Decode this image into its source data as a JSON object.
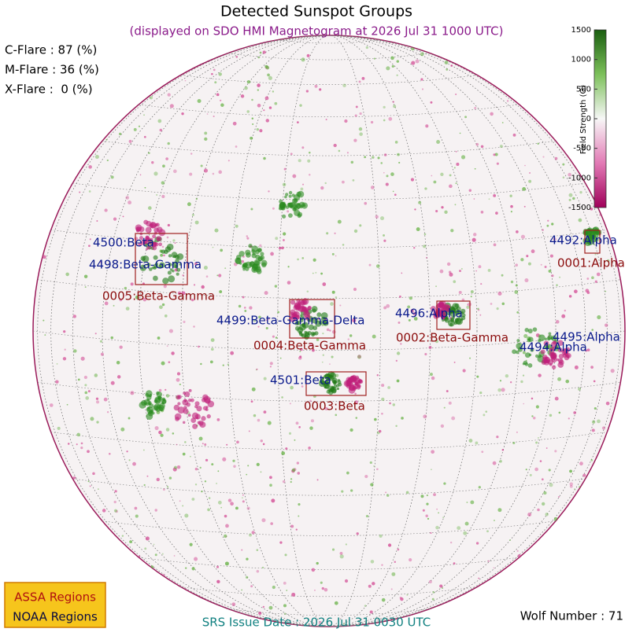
{
  "header": {
    "title": "Detected Sunspot Groups",
    "subtitle": "(displayed on SDO HMI Magnetogram at 2026 Jul 31 1000 UTC)"
  },
  "flare_probabilities": [
    "C-Flare : 87 (%)",
    "M-Flare : 36 (%)",
    "X-Flare :  0 (%)"
  ],
  "colorbar": {
    "label": "Field Strength (G)",
    "ticks": [
      1500,
      1000,
      500,
      0,
      -500,
      -1000,
      -1500
    ]
  },
  "regions": {
    "noaa": [
      "4500:Beta",
      "4498:Beta-Gamma",
      "4499:Beta-Gamma-Delta",
      "4496:Alpha",
      "4501:Beta",
      "4492:Alpha",
      "4495:Alpha",
      "4494:Alpha"
    ],
    "assa": [
      "0005:Beta-Gamma",
      "0004:Beta-Gamma",
      "0002:Beta-Gamma",
      "0003:Beta",
      "0001:Alpha"
    ]
  },
  "legend": [
    "ASSA Regions",
    "NOAA Regions"
  ],
  "footer": {
    "issue_date": "SRS Issue Date : 2026 Jul 31 0030 UTC",
    "wolf_number": "Wolf Number : 71"
  }
}
